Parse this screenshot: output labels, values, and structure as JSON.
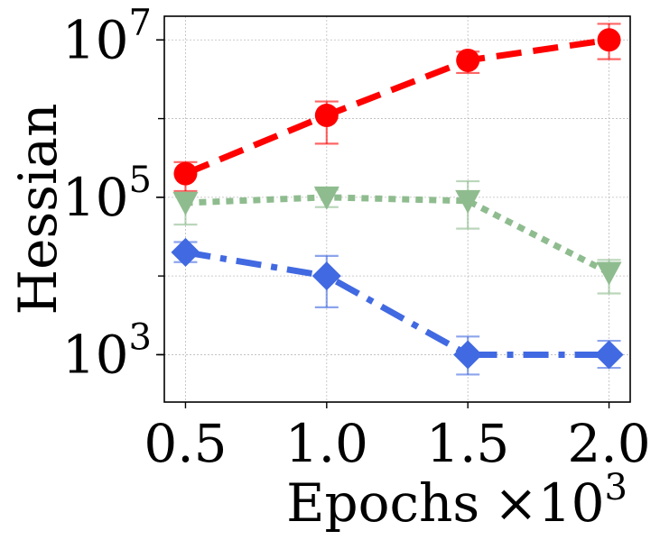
{
  "chart_data": {
    "type": "line",
    "title": "",
    "xlabel": "Epochs",
    "xlabel_multiplier": "×10",
    "xlabel_multiplier_exp": "3",
    "ylabel": "Hessian",
    "yscale": "log",
    "ylim": [
      250,
      20000000
    ],
    "xlim": [
      0.425,
      2.075
    ],
    "grid": true,
    "x": [
      0.5,
      1.0,
      1.5,
      2.0
    ],
    "x_tick_labels": [
      "0.5",
      "1.0",
      "1.5",
      "2.0"
    ],
    "y_ticks": [
      {
        "value": 1000,
        "base": "10",
        "exp": "3"
      },
      {
        "value": 100000,
        "base": "10",
        "exp": "5"
      },
      {
        "value": 10000000,
        "base": "10",
        "exp": "7"
      }
    ],
    "series": [
      {
        "name": "red",
        "color": "#ff0000",
        "linestyle": "dashed",
        "marker": "circle",
        "values": [
          200000,
          1100000,
          5500000,
          10000000
        ],
        "err_low": [
          120000,
          480000,
          3800000,
          5700000
        ],
        "err_high": [
          280000,
          1650000,
          7100000,
          16000000
        ]
      },
      {
        "name": "green",
        "color": "#8fbc8f",
        "linestyle": "dotted",
        "marker": "triangle-down",
        "values": [
          85000,
          100000,
          90000,
          11000
        ],
        "err_low": [
          45000,
          75000,
          40000,
          6000
        ],
        "err_high": [
          115000,
          125000,
          160000,
          16000
        ]
      },
      {
        "name": "blue",
        "color": "#4169e1",
        "linestyle": "dashdot",
        "marker": "diamond",
        "values": [
          20000,
          10000,
          1000,
          1000
        ],
        "err_low": [
          15000,
          4000,
          560.0,
          680
        ],
        "err_high": [
          27000,
          18000,
          1700,
          1500
        ]
      }
    ]
  }
}
